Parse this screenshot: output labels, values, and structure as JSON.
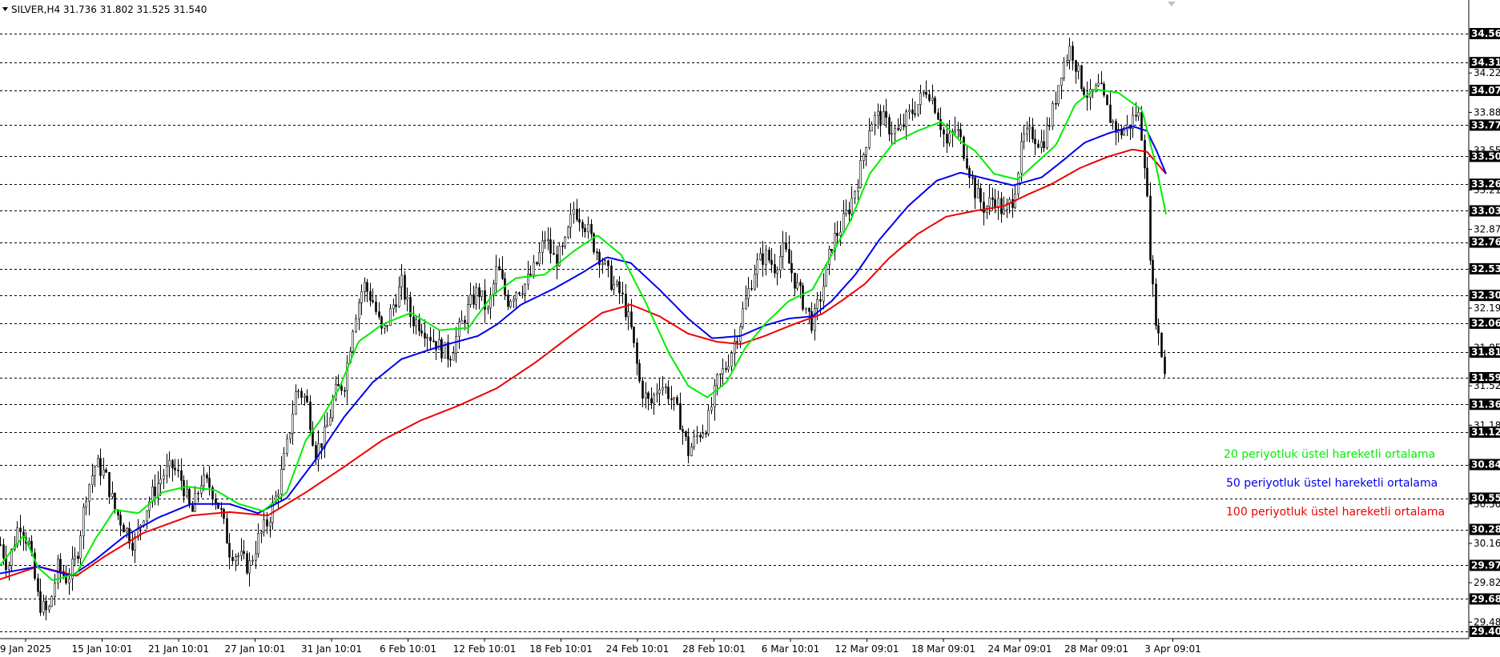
{
  "window": {
    "title": "SILVER,H4  31.736 31.802 31.525 31.540"
  },
  "legend": [
    {
      "label": "20 periyotluk üstel hareketli ortalama",
      "color": "#00ee00"
    },
    {
      "label": "50 periyotluk üstel hareketli ortalama",
      "color": "#0000ee"
    },
    {
      "label": "100 periyotluk üstel hareketli ortalama",
      "color": "#ee0000"
    }
  ],
  "chart_data": {
    "type": "candlestick",
    "symbol": "SILVER",
    "timeframe": "H4",
    "ylim": [
      29.4,
      34.62
    ],
    "x_ticks": [
      "9 Jan 2025",
      "15 Jan 10:01",
      "21 Jan 10:01",
      "27 Jan 10:01",
      "31 Jan 10:01",
      "6 Feb 10:01",
      "12 Feb 10:01",
      "18 Feb 10:01",
      "24 Feb 10:01",
      "28 Feb 10:01",
      "6 Mar 10:01",
      "12 Mar 09:01",
      "18 Mar 09:01",
      "24 Mar 09:01",
      "28 Mar 09:01",
      "3 Apr 09:01"
    ],
    "y_ticks": [
      "34.22",
      "33.88",
      "33.55",
      "33.21",
      "32.87",
      "32.53",
      "32.19",
      "31.85",
      "31.52",
      "31.18",
      "30.84",
      "30.50",
      "30.16",
      "29.82",
      "29.48"
    ],
    "tagged_levels": [
      "34.56",
      "34.31",
      "34.07",
      "33.77",
      "33.50",
      "33.26",
      "33.03",
      "32.76",
      "32.53",
      "32.30",
      "32.06",
      "31.81",
      "31.59",
      "31.36",
      "31.12",
      "30.84",
      "30.55",
      "30.28",
      "29.97",
      "29.68",
      "29.40"
    ],
    "ema_anchors": {
      "ema20": [
        [
          0,
          29.97
        ],
        [
          25,
          30.23
        ],
        [
          40,
          29.95
        ],
        [
          55,
          29.84
        ],
        [
          80,
          29.9
        ],
        [
          100,
          30.2
        ],
        [
          120,
          30.45
        ],
        [
          145,
          30.42
        ],
        [
          170,
          30.6
        ],
        [
          195,
          30.65
        ],
        [
          225,
          30.62
        ],
        [
          250,
          30.5
        ],
        [
          275,
          30.44
        ],
        [
          300,
          30.6
        ],
        [
          320,
          31.05
        ],
        [
          335,
          31.22
        ],
        [
          355,
          31.5
        ],
        [
          375,
          31.9
        ],
        [
          400,
          32.05
        ],
        [
          430,
          32.15
        ],
        [
          460,
          32.0
        ],
        [
          490,
          32.02
        ],
        [
          515,
          32.3
        ],
        [
          540,
          32.45
        ],
        [
          570,
          32.48
        ],
        [
          600,
          32.68
        ],
        [
          625,
          32.82
        ],
        [
          650,
          32.65
        ],
        [
          675,
          32.25
        ],
        [
          700,
          31.8
        ],
        [
          720,
          31.52
        ],
        [
          740,
          31.42
        ],
        [
          760,
          31.55
        ],
        [
          780,
          31.85
        ],
        [
          800,
          32.05
        ],
        [
          825,
          32.25
        ],
        [
          850,
          32.35
        ],
        [
          870,
          32.65
        ],
        [
          890,
          32.95
        ],
        [
          910,
          33.35
        ],
        [
          935,
          33.62
        ],
        [
          960,
          33.72
        ],
        [
          985,
          33.8
        ],
        [
          1005,
          33.63
        ],
        [
          1020,
          33.55
        ],
        [
          1040,
          33.35
        ],
        [
          1065,
          33.3
        ],
        [
          1085,
          33.45
        ],
        [
          1105,
          33.6
        ],
        [
          1125,
          33.95
        ],
        [
          1145,
          34.08
        ],
        [
          1170,
          34.05
        ],
        [
          1195,
          33.9
        ],
        [
          1210,
          33.4
        ],
        [
          1220,
          33.0
        ]
      ],
      "ema50": [
        [
          0,
          29.9
        ],
        [
          40,
          29.96
        ],
        [
          75,
          29.88
        ],
        [
          100,
          30.02
        ],
        [
          130,
          30.22
        ],
        [
          165,
          30.38
        ],
        [
          200,
          30.5
        ],
        [
          240,
          30.5
        ],
        [
          270,
          30.42
        ],
        [
          300,
          30.55
        ],
        [
          330,
          30.88
        ],
        [
          360,
          31.25
        ],
        [
          390,
          31.55
        ],
        [
          420,
          31.75
        ],
        [
          460,
          31.86
        ],
        [
          500,
          31.95
        ],
        [
          520,
          32.05
        ],
        [
          545,
          32.22
        ],
        [
          580,
          32.36
        ],
        [
          610,
          32.5
        ],
        [
          635,
          32.63
        ],
        [
          660,
          32.58
        ],
        [
          690,
          32.35
        ],
        [
          720,
          32.1
        ],
        [
          745,
          31.93
        ],
        [
          775,
          31.95
        ],
        [
          800,
          32.04
        ],
        [
          825,
          32.1
        ],
        [
          850,
          32.12
        ],
        [
          870,
          32.25
        ],
        [
          895,
          32.48
        ],
        [
          920,
          32.78
        ],
        [
          950,
          33.07
        ],
        [
          980,
          33.29
        ],
        [
          1005,
          33.36
        ],
        [
          1030,
          33.31
        ],
        [
          1060,
          33.25
        ],
        [
          1090,
          33.32
        ],
        [
          1110,
          33.45
        ],
        [
          1135,
          33.62
        ],
        [
          1160,
          33.7
        ],
        [
          1185,
          33.76
        ],
        [
          1200,
          33.72
        ],
        [
          1210,
          33.55
        ],
        [
          1220,
          33.35
        ]
      ],
      "ema100": [
        [
          0,
          29.85
        ],
        [
          40,
          29.96
        ],
        [
          80,
          29.88
        ],
        [
          110,
          30.05
        ],
        [
          150,
          30.25
        ],
        [
          200,
          30.4
        ],
        [
          240,
          30.43
        ],
        [
          280,
          30.4
        ],
        [
          320,
          30.6
        ],
        [
          360,
          30.82
        ],
        [
          400,
          31.05
        ],
        [
          440,
          31.22
        ],
        [
          480,
          31.35
        ],
        [
          520,
          31.5
        ],
        [
          560,
          31.72
        ],
        [
          600,
          31.97
        ],
        [
          630,
          32.15
        ],
        [
          660,
          32.22
        ],
        [
          690,
          32.12
        ],
        [
          720,
          31.97
        ],
        [
          750,
          31.9
        ],
        [
          775,
          31.88
        ],
        [
          800,
          31.95
        ],
        [
          830,
          32.05
        ],
        [
          860,
          32.14
        ],
        [
          880,
          32.25
        ],
        [
          905,
          32.4
        ],
        [
          930,
          32.62
        ],
        [
          960,
          32.83
        ],
        [
          990,
          32.98
        ],
        [
          1020,
          33.03
        ],
        [
          1050,
          33.07
        ],
        [
          1075,
          33.17
        ],
        [
          1100,
          33.26
        ],
        [
          1130,
          33.4
        ],
        [
          1160,
          33.5
        ],
        [
          1185,
          33.56
        ],
        [
          1200,
          33.54
        ],
        [
          1220,
          33.35
        ]
      ]
    },
    "price_path": [
      [
        0,
        30.15
      ],
      [
        8,
        29.95
      ],
      [
        20,
        30.35
      ],
      [
        30,
        30.15
      ],
      [
        40,
        29.65
      ],
      [
        50,
        29.55
      ],
      [
        60,
        29.95
      ],
      [
        70,
        29.85
      ],
      [
        80,
        30.05
      ],
      [
        90,
        30.6
      ],
      [
        100,
        30.85
      ],
      [
        110,
        30.75
      ],
      [
        120,
        30.45
      ],
      [
        130,
        30.3
      ],
      [
        140,
        30.15
      ],
      [
        150,
        30.42
      ],
      [
        160,
        30.6
      ],
      [
        170,
        30.75
      ],
      [
        180,
        30.82
      ],
      [
        190,
        30.7
      ],
      [
        200,
        30.4
      ],
      [
        210,
        30.7
      ],
      [
        220,
        30.65
      ],
      [
        230,
        30.45
      ],
      [
        240,
        30.1
      ],
      [
        250,
        30.05
      ],
      [
        260,
        29.95
      ],
      [
        270,
        30.2
      ],
      [
        280,
        30.35
      ],
      [
        290,
        30.6
      ],
      [
        300,
        31.0
      ],
      [
        310,
        31.5
      ],
      [
        320,
        31.4
      ],
      [
        330,
        30.95
      ],
      [
        340,
        31.1
      ],
      [
        350,
        31.45
      ],
      [
        360,
        31.55
      ],
      [
        370,
        32.1
      ],
      [
        380,
        32.4
      ],
      [
        390,
        32.25
      ],
      [
        400,
        31.95
      ],
      [
        410,
        32.2
      ],
      [
        420,
        32.4
      ],
      [
        430,
        32.1
      ],
      [
        440,
        32.05
      ],
      [
        450,
        31.95
      ],
      [
        460,
        31.85
      ],
      [
        470,
        31.78
      ],
      [
        480,
        32.0
      ],
      [
        490,
        32.2
      ],
      [
        500,
        32.35
      ],
      [
        510,
        32.15
      ],
      [
        520,
        32.55
      ],
      [
        530,
        32.25
      ],
      [
        540,
        32.35
      ],
      [
        550,
        32.4
      ],
      [
        560,
        32.55
      ],
      [
        570,
        32.8
      ],
      [
        580,
        32.6
      ],
      [
        590,
        32.7
      ],
      [
        600,
        33.05
      ],
      [
        610,
        32.95
      ],
      [
        620,
        32.75
      ],
      [
        630,
        32.6
      ],
      [
        640,
        32.4
      ],
      [
        650,
        32.3
      ],
      [
        660,
        32.0
      ],
      [
        670,
        31.5
      ],
      [
        680,
        31.35
      ],
      [
        690,
        31.55
      ],
      [
        700,
        31.45
      ],
      [
        710,
        31.25
      ],
      [
        720,
        30.95
      ],
      [
        730,
        31.1
      ],
      [
        740,
        31.2
      ],
      [
        750,
        31.55
      ],
      [
        760,
        31.7
      ],
      [
        770,
        31.95
      ],
      [
        780,
        32.25
      ],
      [
        790,
        32.55
      ],
      [
        800,
        32.65
      ],
      [
        810,
        32.55
      ],
      [
        820,
        32.7
      ],
      [
        830,
        32.45
      ],
      [
        840,
        32.25
      ],
      [
        850,
        32.05
      ],
      [
        860,
        32.35
      ],
      [
        870,
        32.75
      ],
      [
        880,
        32.9
      ],
      [
        890,
        33.1
      ],
      [
        900,
        33.4
      ],
      [
        910,
        33.8
      ],
      [
        920,
        33.85
      ],
      [
        930,
        33.75
      ],
      [
        940,
        33.7
      ],
      [
        950,
        33.85
      ],
      [
        960,
        33.95
      ],
      [
        970,
        34.1
      ],
      [
        980,
        33.9
      ],
      [
        990,
        33.6
      ],
      [
        1000,
        33.75
      ],
      [
        1010,
        33.5
      ],
      [
        1020,
        33.2
      ],
      [
        1030,
        33.05
      ],
      [
        1040,
        33.15
      ],
      [
        1050,
        33.0
      ],
      [
        1060,
        33.15
      ],
      [
        1070,
        33.65
      ],
      [
        1080,
        33.7
      ],
      [
        1090,
        33.6
      ],
      [
        1100,
        33.85
      ],
      [
        1110,
        34.25
      ],
      [
        1120,
        34.45
      ],
      [
        1130,
        34.15
      ],
      [
        1140,
        34.0
      ],
      [
        1150,
        34.1
      ],
      [
        1160,
        33.85
      ],
      [
        1170,
        33.7
      ],
      [
        1180,
        33.75
      ],
      [
        1190,
        33.9
      ],
      [
        1196,
        33.6
      ],
      [
        1200,
        33.1
      ],
      [
        1205,
        32.4
      ],
      [
        1210,
        32.05
      ],
      [
        1215,
        31.8
      ],
      [
        1220,
        31.54
      ]
    ]
  }
}
